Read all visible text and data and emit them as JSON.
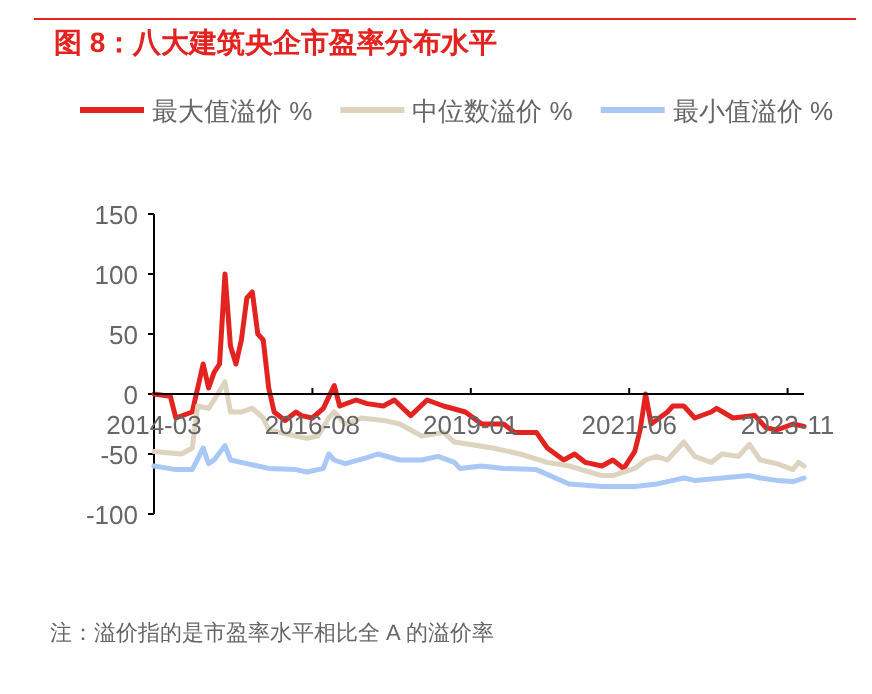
{
  "chart_data": {
    "type": "line",
    "title": "图 8：八大建筑央企市盈率分布水平",
    "legend": "top",
    "xlim": [
      "2014-03",
      "2024-02"
    ],
    "xticks": [
      "2014-03",
      "2016-08",
      "2019-01",
      "2021-06",
      "2023-11"
    ],
    "ylim": [
      -100,
      150
    ],
    "yticks": [
      -100,
      -50,
      0,
      50,
      100,
      150
    ],
    "grid": false,
    "line_style": "solid",
    "marker": "none",
    "annotations": [
      "注：溢价指的是市盈率水平相比全 A 的溢价率"
    ],
    "series": [
      {
        "name": "最大值溢价 %",
        "color": "#e3231f",
        "x": [
          "2014-03",
          "2014-06",
          "2014-07",
          "2014-10",
          "2014-12",
          "2015-01",
          "2015-02",
          "2015-03",
          "2015-04",
          "2015-05",
          "2015-06",
          "2015-07",
          "2015-08",
          "2015-09",
          "2015-10",
          "2015-11",
          "2015-12",
          "2016-01",
          "2016-03",
          "2016-05",
          "2016-06",
          "2016-08",
          "2016-10",
          "2016-12",
          "2017-01",
          "2017-04",
          "2017-06",
          "2017-09",
          "2017-11",
          "2018-02",
          "2018-05",
          "2018-08",
          "2018-12",
          "2019-03",
          "2019-07",
          "2019-09",
          "2020-01",
          "2020-03",
          "2020-06",
          "2020-08",
          "2020-10",
          "2021-01",
          "2021-03",
          "2021-05",
          "2021-07",
          "2021-08",
          "2021-09",
          "2021-10",
          "2022-01",
          "2022-02",
          "2022-04",
          "2022-06",
          "2022-09",
          "2022-10",
          "2023-01",
          "2023-05",
          "2023-07",
          "2023-09",
          "2023-12",
          "2024-02"
        ],
        "values": [
          0,
          -2,
          -20,
          -15,
          25,
          5,
          18,
          25,
          100,
          40,
          25,
          45,
          80,
          85,
          50,
          45,
          5,
          -15,
          -22,
          -15,
          -18,
          -20,
          -12,
          7,
          -10,
          -5,
          -8,
          -10,
          -5,
          -18,
          -5,
          -10,
          -15,
          -25,
          -25,
          -32,
          -32,
          -45,
          -55,
          -50,
          -57,
          -60,
          -55,
          -62,
          -48,
          -30,
          0,
          -25,
          -15,
          -10,
          -10,
          -20,
          -15,
          -12,
          -20,
          -18,
          -28,
          -30,
          -25,
          -27
        ]
      },
      {
        "name": "中位数溢价 %",
        "color": "#ded3bf",
        "x": [
          "2014-03",
          "2014-08",
          "2014-10",
          "2014-11",
          "2015-01",
          "2015-02",
          "2015-04",
          "2015-05",
          "2015-07",
          "2015-09",
          "2015-11",
          "2015-12",
          "2016-02",
          "2016-05",
          "2016-07",
          "2016-09",
          "2016-11",
          "2016-12",
          "2017-02",
          "2017-05",
          "2017-09",
          "2017-12",
          "2018-04",
          "2018-08",
          "2018-10",
          "2019-05",
          "2019-10",
          "2020-03",
          "2020-07",
          "2021-01",
          "2021-03",
          "2021-07",
          "2021-09",
          "2021-11",
          "2022-01",
          "2022-04",
          "2022-06",
          "2022-09",
          "2022-11",
          "2023-02",
          "2023-04",
          "2023-06",
          "2023-09",
          "2023-12",
          "2024-01",
          "2024-02"
        ],
        "values": [
          -48,
          -50,
          -45,
          -10,
          -12,
          -5,
          10,
          -15,
          -15,
          -12,
          -20,
          -30,
          -32,
          -35,
          -37,
          -35,
          -20,
          -15,
          -25,
          -20,
          -22,
          -25,
          -35,
          -32,
          -40,
          -45,
          -50,
          -57,
          -60,
          -68,
          -68,
          -62,
          -55,
          -52,
          -55,
          -40,
          -52,
          -57,
          -50,
          -52,
          -42,
          -55,
          -58,
          -63,
          -57,
          -60
        ]
      },
      {
        "name": "最小值溢价 %",
        "color": "#a9c8f5",
        "x": [
          "2014-03",
          "2014-07",
          "2014-10",
          "2014-12",
          "2015-01",
          "2015-02",
          "2015-04",
          "2015-05",
          "2015-08",
          "2015-12",
          "2016-05",
          "2016-07",
          "2016-10",
          "2016-11",
          "2016-12",
          "2017-02",
          "2017-06",
          "2017-08",
          "2017-12",
          "2018-04",
          "2018-07",
          "2018-10",
          "2018-11",
          "2019-03",
          "2019-07",
          "2020-01",
          "2020-07",
          "2021-01",
          "2021-07",
          "2021-11",
          "2022-01",
          "2022-04",
          "2022-06",
          "2022-11",
          "2023-04",
          "2023-06",
          "2023-09",
          "2023-12",
          "2024-02"
        ],
        "values": [
          -60,
          -63,
          -63,
          -45,
          -58,
          -55,
          -43,
          -55,
          -58,
          -62,
          -63,
          -65,
          -62,
          -50,
          -55,
          -58,
          -53,
          -50,
          -55,
          -55,
          -52,
          -57,
          -62,
          -60,
          -62,
          -63,
          -75,
          -77,
          -77,
          -75,
          -73,
          -70,
          -72,
          -70,
          -68,
          -70,
          -72,
          -73,
          -70
        ]
      }
    ]
  }
}
